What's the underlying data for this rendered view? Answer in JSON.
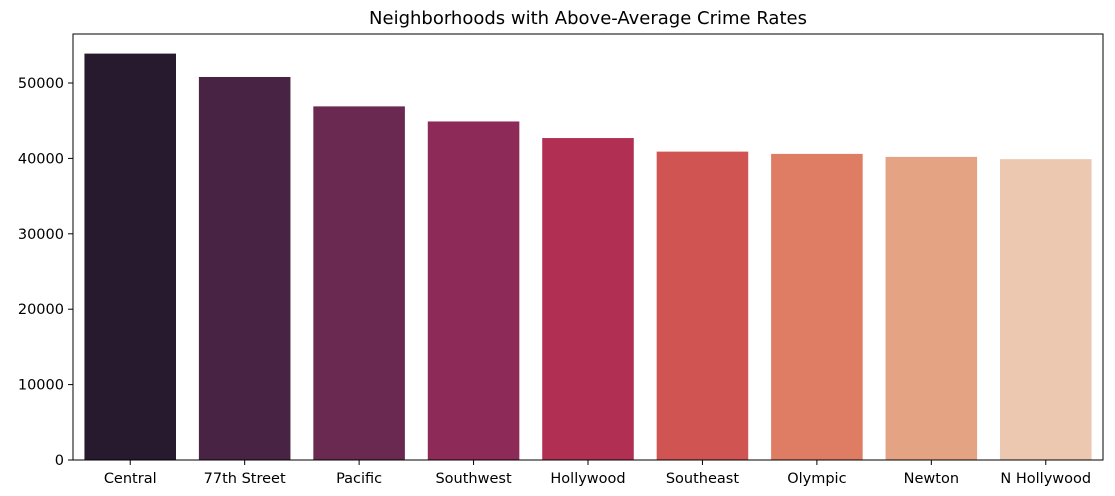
{
  "chart_data": {
    "type": "bar",
    "title": "Neighborhoods with Above-Average Crime Rates",
    "xlabel": "",
    "ylabel": "",
    "categories": [
      "Central",
      "77th Street",
      "Pacific",
      "Southwest",
      "Hollywood",
      "Southeast",
      "Olympic",
      "Newton",
      "N Hollywood"
    ],
    "values": [
      53900,
      50800,
      46900,
      44900,
      42700,
      40900,
      40600,
      40200,
      39900
    ],
    "colors": [
      "#271a2f",
      "#482343",
      "#6a2951",
      "#8d2a57",
      "#b22f54",
      "#d05452",
      "#df7d64",
      "#e4a383",
      "#ecc8b0"
    ],
    "ylim": [
      0,
      56500
    ],
    "yticks": [
      0,
      10000,
      20000,
      30000,
      40000,
      50000
    ],
    "ytick_labels": [
      "0",
      "10000",
      "20000",
      "30000",
      "40000",
      "50000"
    ],
    "grid": false,
    "legend": "none"
  }
}
